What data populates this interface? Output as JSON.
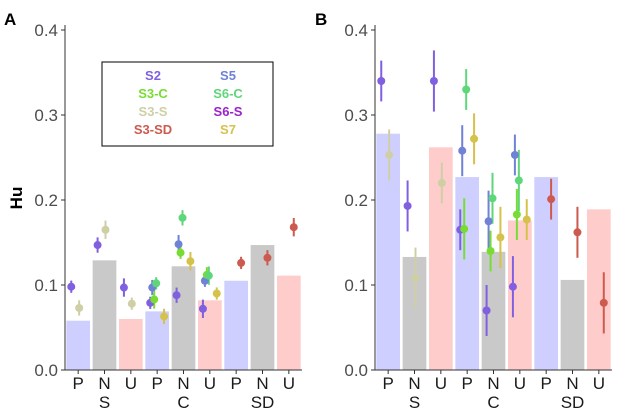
{
  "chart_data": [
    {
      "panel": "A",
      "type": "bar",
      "ylabel": "Hu",
      "ylim": [
        0,
        0.4
      ],
      "yticks": [
        "0.0",
        "0.1",
        "0.2",
        "0.3",
        "0.4"
      ],
      "categories": [
        "P",
        "N",
        "U",
        "P",
        "N",
        "U",
        "P",
        "N",
        "U"
      ],
      "groups": [
        "S",
        "C",
        "SD"
      ],
      "bar_values": [
        0.058,
        0.129,
        0.06,
        0.069,
        0.122,
        0.082,
        0.105,
        0.147,
        0.111
      ],
      "series": [
        {
          "name": "S2",
          "values": [
            0.098,
            0.147,
            0.097,
            0.079,
            0.088,
            0.072,
            null,
            null,
            null
          ]
        },
        {
          "name": "S5",
          "values": [
            null,
            null,
            null,
            0.097,
            0.148,
            0.105,
            null,
            null,
            null
          ]
        },
        {
          "name": "S3-C",
          "values": [
            null,
            null,
            null,
            0.083,
            0.138,
            0.112,
            null,
            null,
            null
          ]
        },
        {
          "name": "S6-C",
          "values": [
            null,
            null,
            null,
            0.102,
            0.179,
            0.111,
            null,
            null,
            null
          ]
        },
        {
          "name": "S3-S",
          "values": [
            0.073,
            0.165,
            0.078,
            null,
            null,
            null,
            null,
            null,
            null
          ]
        },
        {
          "name": "S6-S",
          "values": [
            null,
            null,
            null,
            null,
            null,
            null,
            null,
            null,
            null
          ]
        },
        {
          "name": "S3-SD",
          "values": [
            null,
            null,
            null,
            null,
            null,
            null,
            0.126,
            0.132,
            0.168
          ]
        },
        {
          "name": "S7",
          "values": [
            null,
            null,
            null,
            0.063,
            0.128,
            0.09,
            null,
            null,
            null
          ]
        }
      ]
    },
    {
      "panel": "B",
      "type": "bar",
      "ylabel": "",
      "ylim": [
        0,
        0.4
      ],
      "yticks": [
        "0.0",
        "0.1",
        "0.2",
        "0.3",
        "0.4"
      ],
      "categories": [
        "P",
        "N",
        "U",
        "P",
        "N",
        "U",
        "P",
        "N",
        "U"
      ],
      "groups": [
        "S",
        "C",
        "SD"
      ],
      "bar_values": [
        0.278,
        0.133,
        0.262,
        0.227,
        0.139,
        0.176,
        0.227,
        0.106,
        0.189
      ],
      "series": [
        {
          "name": "S2",
          "values": [
            0.34,
            0.193,
            0.34,
            0.165,
            0.07,
            0.098,
            null,
            null,
            null
          ]
        },
        {
          "name": "S5",
          "values": [
            null,
            null,
            null,
            0.258,
            0.175,
            0.253,
            null,
            null,
            null
          ]
        },
        {
          "name": "S3-C",
          "values": [
            null,
            null,
            null,
            0.166,
            0.14,
            0.183,
            null,
            null,
            null
          ]
        },
        {
          "name": "S6-C",
          "values": [
            null,
            null,
            null,
            0.33,
            0.202,
            0.223,
            null,
            null,
            null
          ]
        },
        {
          "name": "S3-S",
          "values": [
            0.253,
            0.108,
            0.22,
            null,
            null,
            null,
            null,
            null,
            null
          ]
        },
        {
          "name": "S6-S",
          "values": [
            null,
            null,
            null,
            null,
            null,
            null,
            null,
            null,
            null
          ]
        },
        {
          "name": "S3-SD",
          "values": [
            null,
            null,
            null,
            null,
            null,
            null,
            0.201,
            0.162,
            0.079
          ]
        },
        {
          "name": "S7",
          "values": [
            null,
            null,
            null,
            0.272,
            0.156,
            0.177,
            null,
            null,
            null
          ]
        }
      ]
    }
  ],
  "legend": {
    "placement": "top",
    "entries": [
      {
        "label": "S2",
        "color": "#8060e0"
      },
      {
        "label": "S5",
        "color": "#6f82d6"
      },
      {
        "label": "S3-C",
        "color": "#77dd33"
      },
      {
        "label": "S6-C",
        "color": "#5ed67a"
      },
      {
        "label": "S3-S",
        "color": "#cfcfa6"
      },
      {
        "label": "S6-S",
        "color": "#9b22cc"
      },
      {
        "label": "S3-SD",
        "color": "#cc5a4e"
      },
      {
        "label": "S7",
        "color": "#d4c24a"
      }
    ]
  },
  "bar_colors": {
    "P": "#ccccff",
    "N": "#c6c6c6",
    "U": "#ffc9c9"
  }
}
